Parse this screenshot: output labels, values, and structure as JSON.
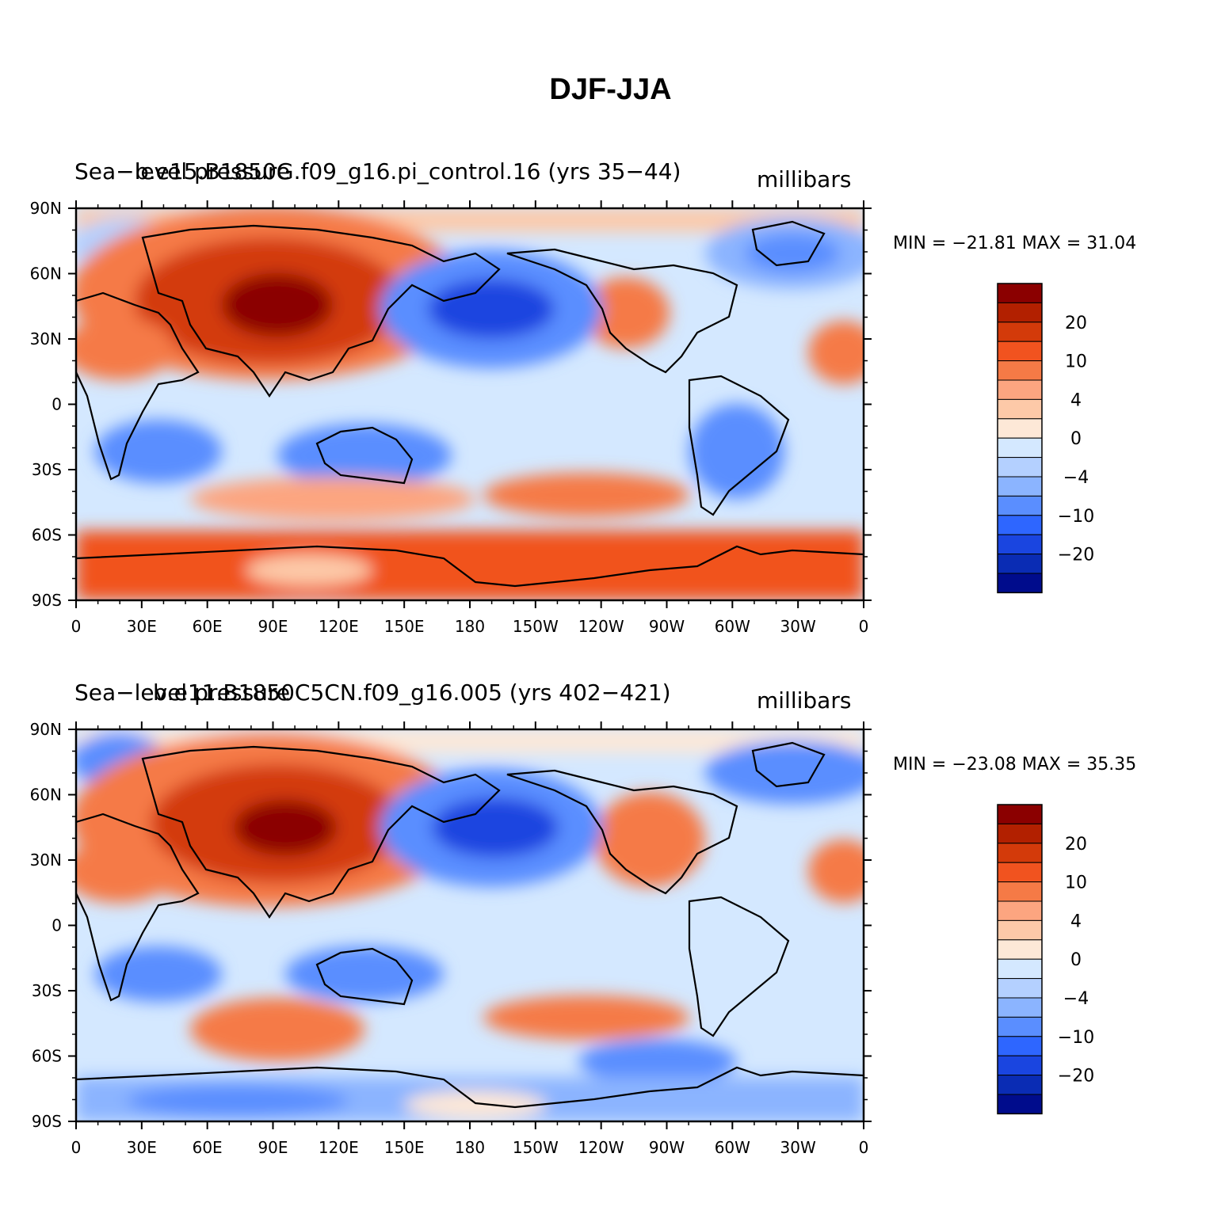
{
  "title": "DJF-JJA",
  "axes": {
    "lat_labels": [
      "90N",
      "60N",
      "30N",
      "0",
      "30S",
      "60S",
      "90S"
    ],
    "lon_labels": [
      "0",
      "30E",
      "60E",
      "90E",
      "120E",
      "150E",
      "180",
      "150W",
      "120W",
      "90W",
      "60W",
      "30W",
      "0"
    ]
  },
  "colorbar": {
    "labels": [
      "20",
      "10",
      "4",
      "0",
      "−4",
      "−10",
      "−20"
    ],
    "colors": [
      "#8b0000",
      "#b22000",
      "#d33a0a",
      "#f1531f",
      "#f57a46",
      "#fca580",
      "#fdc9a8",
      "#fde8d7",
      "#d4e8ff",
      "#b4d0ff",
      "#8bb4ff",
      "#5a8eff",
      "#2e66ff",
      "#1a45e0",
      "#0a2cb4",
      "#000c8c"
    ]
  },
  "panels": [
    {
      "left_label": "Sea−level pressure",
      "center_label": "b.e15.B1850G.f09_g16.pi_control.16 (yrs 35−44)",
      "right_label": "millibars",
      "min_max": "MIN = −21.81  MAX =   31.04"
    },
    {
      "left_label": "Sea−level pressure",
      "center_label": "b.e11.B1850C5CN.f09_g16.005 (yrs 402−421)",
      "right_label": "millibars",
      "min_max": "MIN = −23.08  MAX =   35.35"
    }
  ]
}
